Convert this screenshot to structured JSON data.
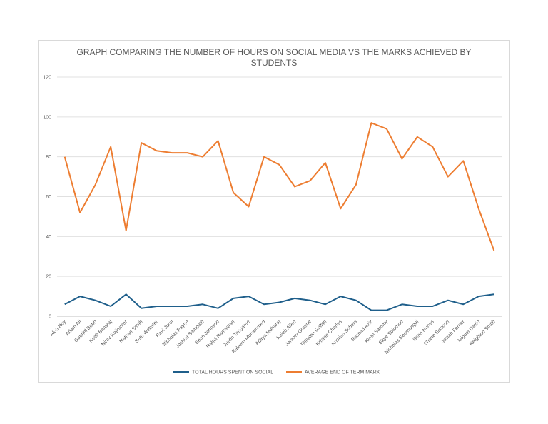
{
  "chart_data": {
    "type": "line",
    "title": "GRAPH COMPARING THE NUMBER OF HOURS ON SOCIAL MEDIA VS THE MARKS ACHIEVED BY STUDENTS",
    "categories": [
      "Alon Roy",
      "Adam Ali",
      "Gabriel Bobb",
      "Keith Bansraj",
      "Nirav Rajkumar",
      "Nathan Smith",
      "Seth Webster",
      "Ravi Jurai",
      "Nicholas Payne",
      "Joshua Sampath",
      "Sean Johnson",
      "Rahul Ramsaran",
      "Justin Tangaree",
      "Kaleem Mohammed",
      "Aditya Maharaj",
      "Kaleb Allen",
      "Jeremy Greene",
      "Tinhalon Griffith",
      "Kriston Charles",
      "Kristian Sobers",
      "Rashad Aziz",
      "Kiran Sammy",
      "Skye Solomon",
      "Nicholas Seemungal",
      "Sean Nunes",
      "Shane Bissoon",
      "Josiah Ferrier",
      "Miguel David",
      "Keighton Smith"
    ],
    "series": [
      {
        "name": "TOTAL HOURS SPENT ON SOCIAL",
        "color": "#1f5f8b",
        "values": [
          6,
          10,
          8,
          5,
          11,
          4,
          5,
          5,
          5,
          6,
          4,
          9,
          10,
          6,
          7,
          9,
          8,
          6,
          10,
          8,
          3,
          3,
          6,
          5,
          5,
          8,
          6,
          10,
          11
        ]
      },
      {
        "name": "AVERAGE END OF TERM MARK",
        "color": "#ed7d31",
        "values": [
          80,
          52,
          66,
          85,
          43,
          87,
          83,
          82,
          82,
          80,
          88,
          62,
          55,
          80,
          76,
          65,
          68,
          77,
          54,
          66,
          97,
          94,
          79,
          90,
          85,
          70,
          78,
          54,
          33
        ]
      }
    ],
    "ylim": [
      0,
      120
    ],
    "yticks": [
      0,
      20,
      40,
      60,
      80,
      100,
      120
    ],
    "grid": true,
    "legend": "bottom"
  }
}
